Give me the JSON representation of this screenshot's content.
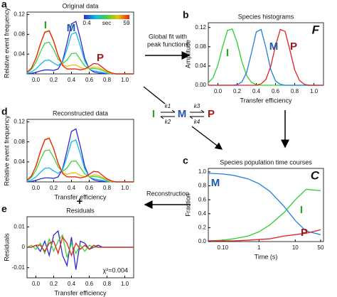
{
  "chart_data": [
    {
      "type": "line",
      "panel": "a",
      "title": "Original data",
      "ylabel": "Relative event frequency",
      "x": [
        -0.1,
        -0.05,
        0,
        0.05,
        0.1,
        0.15,
        0.2,
        0.25,
        0.3,
        0.35,
        0.4,
        0.45,
        0.5,
        0.55,
        0.6,
        0.65,
        0.7,
        0.75,
        0.8,
        0.85,
        0.9,
        0.95,
        1.0,
        1.05,
        1.1
      ],
      "xlim": [
        -0.1,
        1.1
      ],
      "xticks": [
        {
          "value": 0,
          "label": "0.0"
        },
        0.2,
        0.4,
        0.6,
        0.8,
        {
          "value": 1,
          "label": "1.0"
        }
      ],
      "ylim": [
        0,
        0.125
      ],
      "yticks": [
        0.04,
        0.08,
        0.12
      ],
      "series": [
        {
          "color": "#2a2ad0",
          "values": [
            0,
            0.001,
            0.003,
            0.006,
            0.008,
            0.008,
            0.007,
            0.01,
            0.026,
            0.062,
            0.101,
            0.106,
            0.071,
            0.031,
            0.01,
            0.004,
            0.002,
            0.001,
            0.001,
            0,
            0,
            0,
            0,
            0,
            0
          ]
        },
        {
          "color": "#10b8e8",
          "values": [
            0.001,
            0.004,
            0.01,
            0.019,
            0.027,
            0.028,
            0.022,
            0.017,
            0.024,
            0.05,
            0.08,
            0.084,
            0.056,
            0.026,
            0.01,
            0.006,
            0.005,
            0.003,
            0.001,
            0,
            0,
            0,
            0,
            0,
            0
          ]
        },
        {
          "color": "#40d040",
          "values": [
            0.003,
            0.009,
            0.023,
            0.044,
            0.062,
            0.064,
            0.049,
            0.03,
            0.021,
            0.028,
            0.041,
            0.042,
            0.029,
            0.016,
            0.011,
            0.011,
            0.01,
            0.007,
            0.003,
            0.001,
            0,
            0,
            0,
            0,
            0
          ]
        },
        {
          "color": "#f0c000",
          "values": [
            0.003,
            0.012,
            0.032,
            0.061,
            0.085,
            0.088,
            0.067,
            0.038,
            0.019,
            0.015,
            0.018,
            0.018,
            0.013,
            0.01,
            0.011,
            0.014,
            0.013,
            0.009,
            0.004,
            0.001,
            0,
            0,
            0,
            0,
            0
          ]
        },
        {
          "color": "#e82010",
          "values": [
            0.003,
            0.012,
            0.031,
            0.06,
            0.084,
            0.087,
            0.066,
            0.037,
            0.017,
            0.01,
            0.01,
            0.01,
            0.008,
            0.01,
            0.015,
            0.021,
            0.02,
            0.013,
            0.006,
            0.002,
            0,
            0,
            0,
            0,
            0
          ]
        }
      ],
      "peak_labels": [
        "I",
        "M",
        "P"
      ],
      "peak_label_colors": [
        "#22aa22",
        "#1a5aa8",
        "#a01818"
      ],
      "colorbar_range": [
        0.4,
        59
      ],
      "colorbar_unit": "sec",
      "colorbar_colors": [
        "#2a2ad0",
        "#10b8e8",
        "#40d040",
        "#f0c000",
        "#e82010"
      ]
    },
    {
      "type": "line",
      "panel": "b",
      "title": "Species histograms",
      "ylabel": "Amplitude",
      "xlabel": "Transfer efficiency",
      "corner_letter": "F",
      "x": [
        -0.1,
        -0.05,
        0,
        0.05,
        0.1,
        0.15,
        0.2,
        0.25,
        0.3,
        0.35,
        0.4,
        0.45,
        0.5,
        0.55,
        0.6,
        0.65,
        0.7,
        0.75,
        0.8,
        0.85,
        0.9,
        0.95,
        1.0,
        1.05,
        1.1
      ],
      "xlim": [
        -0.1,
        1.1
      ],
      "xticks": [
        {
          "value": 0,
          "label": "0.0"
        },
        0.2,
        0.4,
        0.6,
        0.8,
        {
          "value": 1,
          "label": "1.0"
        }
      ],
      "ylim": [
        0,
        0.13
      ],
      "yticks": [
        {
          "value": 0,
          "label": "0.00"
        },
        0.04,
        0.08,
        0.12
      ],
      "series": [
        {
          "name": "I",
          "color": "#30cc30",
          "values": [
            0.005,
            0.016,
            0.042,
            0.081,
            0.114,
            0.117,
            0.089,
            0.049,
            0.02,
            0.006,
            0.001,
            0,
            0,
            0,
            0,
            0,
            0,
            0,
            0,
            0,
            0,
            0,
            0,
            0,
            0
          ]
        },
        {
          "name": "M",
          "color": "#2080e0",
          "values": [
            0,
            0,
            0,
            0,
            0,
            0,
            0.001,
            0.007,
            0.027,
            0.068,
            0.111,
            0.116,
            0.078,
            0.033,
            0.009,
            0.002,
            0,
            0,
            0,
            0,
            0,
            0,
            0,
            0,
            0
          ]
        },
        {
          "name": "P",
          "color": "#e02020",
          "values": [
            0,
            0,
            0,
            0,
            0,
            0,
            0,
            0,
            0,
            0,
            0,
            0.003,
            0.012,
            0.039,
            0.082,
            0.116,
            0.112,
            0.073,
            0.032,
            0.01,
            0.002,
            0,
            0,
            0,
            0
          ]
        }
      ],
      "label_colors": [
        "#22aa22",
        "#1a5aa8",
        "#a01818"
      ]
    },
    {
      "type": "line",
      "panel": "c",
      "title": "Species population time courses",
      "ylabel": "Fraction",
      "xlabel": "Time (s)",
      "corner_letter": "C",
      "xscale": "log",
      "x": [
        0.04,
        0.1,
        0.2,
        0.5,
        1,
        2,
        5,
        10,
        20,
        50
      ],
      "xlim": [
        0.04,
        60
      ],
      "xticks": [
        {
          "value": 0.1,
          "label": "0.10"
        },
        1,
        10,
        50
      ],
      "ylim": [
        0,
        1.05
      ],
      "yticks": [
        {
          "value": 0,
          "label": "0.0"
        },
        0.2,
        0.4,
        0.6,
        0.8,
        {
          "value": 1,
          "label": "1.0"
        }
      ],
      "series": [
        {
          "name": "M",
          "color": "#2080e0",
          "values": [
            0.98,
            0.97,
            0.95,
            0.9,
            0.83,
            0.72,
            0.5,
            0.3,
            0.15,
            0.1
          ]
        },
        {
          "name": "I",
          "color": "#30cc30",
          "values": [
            0.01,
            0.02,
            0.04,
            0.08,
            0.14,
            0.24,
            0.42,
            0.6,
            0.75,
            0.73
          ]
        },
        {
          "name": "P",
          "color": "#e02020",
          "values": [
            0.01,
            0.01,
            0.01,
            0.02,
            0.03,
            0.04,
            0.08,
            0.1,
            0.12,
            0.17
          ]
        }
      ],
      "label_colors": [
        "#1a5aa8",
        "#22aa22",
        "#a01818"
      ]
    },
    {
      "type": "line",
      "panel": "d",
      "title": "Reconstructed data",
      "ylabel": "Relative event frequency",
      "xlabel": "Transfer efficiency",
      "x": [
        -0.1,
        -0.05,
        0,
        0.05,
        0.1,
        0.15,
        0.2,
        0.25,
        0.3,
        0.35,
        0.4,
        0.45,
        0.5,
        0.55,
        0.6,
        0.65,
        0.7,
        0.75,
        0.8,
        0.85,
        0.9,
        0.95,
        1.0,
        1.05,
        1.1
      ],
      "xlim": [
        -0.1,
        1.1
      ],
      "xticks": [
        {
          "value": 0,
          "label": "0.0"
        },
        0.2,
        0.4,
        0.6,
        0.8,
        {
          "value": 1,
          "label": "1.0"
        }
      ],
      "ylim": [
        0,
        0.125
      ],
      "yticks": [
        0.04,
        0.08,
        0.12
      ],
      "series": [
        {
          "color": "#2a2ad0",
          "values": [
            0,
            0.001,
            0.003,
            0.006,
            0.008,
            0.008,
            0.007,
            0.01,
            0.026,
            0.062,
            0.101,
            0.106,
            0.071,
            0.031,
            0.01,
            0.004,
            0.002,
            0.001,
            0.001,
            0,
            0,
            0,
            0,
            0,
            0
          ]
        },
        {
          "color": "#10b8e8",
          "values": [
            0.001,
            0.004,
            0.01,
            0.019,
            0.027,
            0.028,
            0.022,
            0.017,
            0.024,
            0.05,
            0.08,
            0.084,
            0.056,
            0.026,
            0.01,
            0.006,
            0.005,
            0.003,
            0.001,
            0,
            0,
            0,
            0,
            0,
            0
          ]
        },
        {
          "color": "#40d040",
          "values": [
            0.003,
            0.009,
            0.023,
            0.044,
            0.062,
            0.064,
            0.049,
            0.03,
            0.021,
            0.028,
            0.041,
            0.042,
            0.029,
            0.016,
            0.011,
            0.011,
            0.01,
            0.007,
            0.003,
            0.001,
            0,
            0,
            0,
            0,
            0
          ]
        },
        {
          "color": "#f0c000",
          "values": [
            0.003,
            0.012,
            0.032,
            0.061,
            0.085,
            0.088,
            0.067,
            0.038,
            0.019,
            0.015,
            0.018,
            0.018,
            0.013,
            0.01,
            0.011,
            0.014,
            0.013,
            0.009,
            0.004,
            0.001,
            0,
            0,
            0,
            0,
            0
          ]
        },
        {
          "color": "#e82010",
          "values": [
            0.003,
            0.012,
            0.031,
            0.06,
            0.084,
            0.087,
            0.066,
            0.037,
            0.017,
            0.01,
            0.01,
            0.01,
            0.008,
            0.01,
            0.015,
            0.021,
            0.02,
            0.013,
            0.006,
            0.002,
            0,
            0,
            0,
            0,
            0
          ]
        }
      ]
    },
    {
      "type": "line",
      "panel": "e",
      "title": "Residuals",
      "ylabel": "Residuals",
      "xlabel": "Transfer efficiency",
      "annotation": "χ²=0.004",
      "x": [
        -0.1,
        -0.05,
        0,
        0.05,
        0.1,
        0.15,
        0.2,
        0.25,
        0.3,
        0.35,
        0.4,
        0.45,
        0.5,
        0.55,
        0.6,
        0.65,
        0.7,
        0.75,
        0.8,
        0.85,
        0.9,
        0.95,
        1.0,
        1.05,
        1.1
      ],
      "xlim": [
        -0.1,
        1.1
      ],
      "xticks": [
        {
          "value": 0,
          "label": "0.0"
        },
        0.2,
        0.4,
        0.6,
        0.8,
        {
          "value": 1,
          "label": "1.0"
        }
      ],
      "ylim": [
        -0.015,
        0.015
      ],
      "yticks": [
        -0.01,
        0,
        0.01
      ],
      "series": [
        {
          "color": "#2a2ad0",
          "values": [
            0,
            0,
            0.001,
            -0.002,
            0.003,
            -0.004,
            0.006,
            0.008,
            -0.004,
            -0.009,
            0.005,
            -0.011,
            0.003,
            0.002,
            -0.001,
            0,
            0.001,
            0,
            0,
            0,
            0,
            0,
            0,
            0,
            0
          ]
        },
        {
          "color": "#40d040",
          "values": [
            0,
            0.001,
            -0.001,
            0.002,
            -0.003,
            0.004,
            -0.002,
            0.003,
            0.006,
            -0.005,
            0.002,
            -0.003,
            0.001,
            -0.002,
            0.001,
            0,
            0,
            0,
            0,
            0,
            0,
            0,
            0,
            0,
            0
          ]
        },
        {
          "color": "#e82010",
          "values": [
            0,
            0,
            0.001,
            0.001,
            -0.002,
            0.002,
            0.003,
            -0.003,
            0.005,
            0.002,
            -0.004,
            0.002,
            -0.001,
            0.001,
            -0.001,
            0.001,
            0,
            0,
            0,
            0,
            0,
            0,
            0,
            0,
            0
          ]
        }
      ]
    }
  ],
  "fit_arrow_text": [
    "Global fit with",
    "peak functions"
  ],
  "reconstruction_text": "Reconstruction",
  "plus": "+",
  "scheme": {
    "species": [
      "I",
      "M",
      "P"
    ],
    "rates": [
      "k1",
      "k2",
      "k3",
      "k4"
    ]
  }
}
